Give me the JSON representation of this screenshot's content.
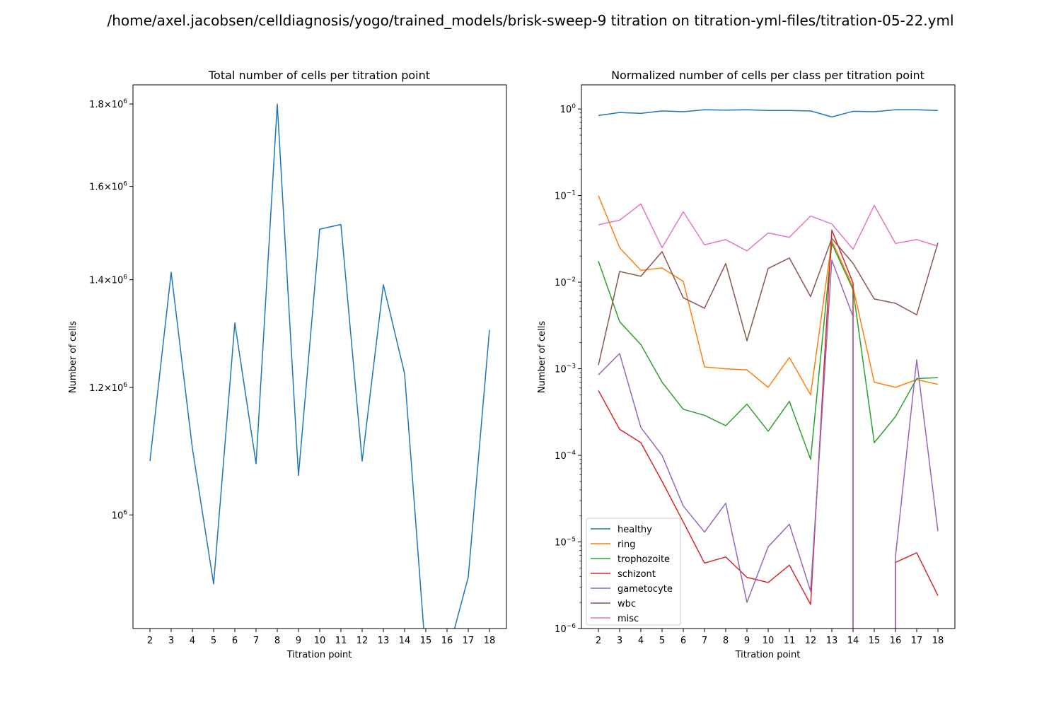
{
  "figure": {
    "title": "/home/axel.jacobsen/celldiagnosis/yogo/trained_models/brisk-sweep-9 titration on titration-yml-files/titration-05-22.yml"
  },
  "chart_data": [
    {
      "type": "line",
      "title": "Total number of cells per titration point",
      "xlabel": "Titration point",
      "ylabel": "Number of cells",
      "yscale": "log",
      "ylim": [
        850000,
        1850000
      ],
      "xlim": [
        1.2,
        18.8
      ],
      "x": [
        2,
        3,
        4,
        5,
        6,
        7,
        8,
        9,
        10,
        11,
        12,
        13,
        14,
        15,
        16,
        17,
        18
      ],
      "ytick_labels": [
        {
          "value": 1000000,
          "base": "10",
          "exp": "6",
          "mant": ""
        },
        {
          "value": 1200000,
          "base": "10",
          "exp": "6",
          "mant": "1.2"
        },
        {
          "value": 1400000,
          "base": "10",
          "exp": "6",
          "mant": "1.4"
        },
        {
          "value": 1600000,
          "base": "10",
          "exp": "6",
          "mant": "1.6"
        },
        {
          "value": 1800000,
          "base": "10",
          "exp": "6",
          "mant": "1.8"
        }
      ],
      "series": [
        {
          "color": "#1f77b4",
          "values": [
            1080000,
            1415000,
            1100000,
            906000,
            1316000,
            1076000,
            1800000,
            1058000,
            1505000,
            1515000,
            1080000,
            1390000,
            1224000,
            825000,
            849000,
            915000,
            1303000
          ]
        }
      ],
      "grid": false,
      "legend": null
    },
    {
      "type": "line",
      "title": "Normalized number of cells per class per titration point",
      "xlabel": "Titration point",
      "ylabel": "Number of cells",
      "yscale": "log",
      "ylim": [
        1e-06,
        1.9
      ],
      "xlim": [
        1.2,
        18.8
      ],
      "x": [
        2,
        3,
        4,
        5,
        6,
        7,
        8,
        9,
        10,
        11,
        12,
        13,
        14,
        15,
        16,
        17,
        18
      ],
      "ytick_labels": [
        {
          "value": 1e-06,
          "base": "10",
          "exp": "−6",
          "mant": ""
        },
        {
          "value": 1e-05,
          "base": "10",
          "exp": "−5",
          "mant": ""
        },
        {
          "value": 0.0001,
          "base": "10",
          "exp": "−4",
          "mant": ""
        },
        {
          "value": 0.001,
          "base": "10",
          "exp": "−3",
          "mant": ""
        },
        {
          "value": 0.01,
          "base": "10",
          "exp": "−2",
          "mant": ""
        },
        {
          "value": 0.1,
          "base": "10",
          "exp": "−1",
          "mant": ""
        },
        {
          "value": 1,
          "base": "10",
          "exp": "0",
          "mant": ""
        }
      ],
      "legend": "lower left",
      "grid": false,
      "series": [
        {
          "name": "healthy",
          "color": "#1f77b4",
          "values": [
            0.84,
            0.91,
            0.89,
            0.95,
            0.93,
            0.98,
            0.97,
            0.98,
            0.96,
            0.96,
            0.95,
            0.81,
            0.94,
            0.93,
            0.98,
            0.98,
            0.96
          ]
        },
        {
          "name": "ring",
          "color": "#ff7f0e",
          "values": [
            0.1,
            0.025,
            0.0137,
            0.0146,
            0.0102,
            0.00105,
            0.001,
            0.00097,
            0.00061,
            0.00135,
            0.0005,
            0.03,
            0.0088,
            0.0007,
            0.00061,
            0.00075,
            0.00066
          ]
        },
        {
          "name": "trophozoite",
          "color": "#2ca02c",
          "values": [
            0.0175,
            0.0035,
            0.0019,
            0.0007,
            0.00034,
            0.00029,
            0.00022,
            0.00039,
            0.00019,
            0.00042,
            9e-05,
            0.028,
            0.0082,
            0.00014,
            0.00028,
            0.00077,
            0.00079
          ]
        },
        {
          "name": "schizont",
          "color": "#d62728",
          "values": [
            0.00056,
            0.0002,
            0.00014,
            5e-05,
            1.7e-05,
            5.7e-06,
            6.7e-06,
            3.9e-06,
            3.4e-06,
            5.4e-06,
            1.9e-06,
            0.04,
            0.0098,
            null,
            5.8e-06,
            7.5e-06,
            2.4e-06
          ]
        },
        {
          "name": "gametocyte",
          "color": "#9467bd",
          "values": [
            0.00085,
            0.0015,
            0.00021,
            0.0001,
            2.6e-05,
            1.3e-05,
            2.8e-05,
            2e-06,
            8.8e-06,
            1.6e-05,
            2.7e-06,
            0.018,
            0.004,
            null,
            6.8e-06,
            0.00127,
            1.33e-05
          ]
        },
        {
          "name": "wbc",
          "color": "#8c564b",
          "values": [
            0.0011,
            0.0133,
            0.0117,
            0.0225,
            0.0066,
            0.005,
            0.0164,
            0.0021,
            0.0144,
            0.019,
            0.0068,
            0.032,
            0.0165,
            0.0064,
            0.0057,
            0.0042,
            0.0285
          ]
        },
        {
          "name": "misc",
          "color": "#e377c2",
          "values": [
            0.046,
            0.052,
            0.08,
            0.025,
            0.065,
            0.027,
            0.031,
            0.023,
            0.037,
            0.033,
            0.058,
            0.047,
            0.024,
            0.077,
            0.028,
            0.031,
            0.026
          ]
        }
      ]
    }
  ]
}
